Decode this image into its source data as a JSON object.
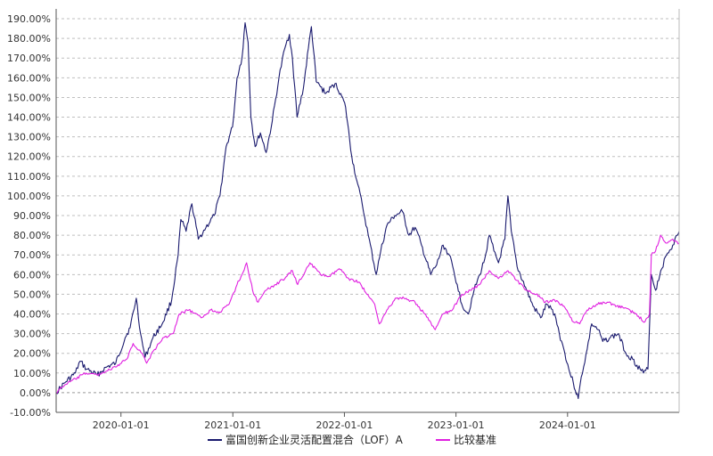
{
  "chart_data": {
    "type": "line",
    "title": "",
    "xlabel": "",
    "ylabel": "",
    "x_range": [
      "2019-06-03",
      "2024-12-31"
    ],
    "ylim": [
      -10,
      195
    ],
    "y_ticks": [
      -10,
      0,
      10,
      20,
      30,
      40,
      50,
      60,
      70,
      80,
      90,
      100,
      110,
      120,
      130,
      140,
      150,
      160,
      170,
      180,
      190
    ],
    "y_tick_labels": [
      "-10.00%",
      "0.00%",
      "10.00%",
      "20.00%",
      "30.00%",
      "40.00%",
      "50.00%",
      "60.00%",
      "70.00%",
      "80.00%",
      "90.00%",
      "100.00%",
      "110.00%",
      "120.00%",
      "130.00%",
      "140.00%",
      "150.00%",
      "160.00%",
      "170.00%",
      "180.00%",
      "190.00%"
    ],
    "x_ticks": [
      "2020-01-01",
      "2021-01-01",
      "2022-01-01",
      "2023-01-01",
      "2024-01-01"
    ],
    "y_unit": "%",
    "grid": "horizontal-dashed",
    "legend_position": "bottom-center",
    "series": [
      {
        "name": "富国创新企业灵活配置混合（LOF）A",
        "color": "#1a1a6e",
        "points": [
          [
            "2019-06-03",
            0
          ],
          [
            "2019-07-01",
            5
          ],
          [
            "2019-08-05",
            10
          ],
          [
            "2019-08-20",
            16
          ],
          [
            "2019-09-10",
            12
          ],
          [
            "2019-10-15",
            9
          ],
          [
            "2019-11-15",
            13
          ],
          [
            "2019-12-15",
            15
          ],
          [
            "2020-01-15",
            28
          ],
          [
            "2020-01-31",
            33
          ],
          [
            "2020-02-20",
            48
          ],
          [
            "2020-03-05",
            30
          ],
          [
            "2020-03-20",
            18
          ],
          [
            "2020-04-15",
            28
          ],
          [
            "2020-05-15",
            35
          ],
          [
            "2020-06-15",
            47
          ],
          [
            "2020-07-06",
            70
          ],
          [
            "2020-07-15",
            88
          ],
          [
            "2020-08-01",
            82
          ],
          [
            "2020-08-20",
            96
          ],
          [
            "2020-09-10",
            78
          ],
          [
            "2020-10-05",
            84
          ],
          [
            "2020-11-01",
            90
          ],
          [
            "2020-11-20",
            100
          ],
          [
            "2020-12-10",
            125
          ],
          [
            "2020-12-31",
            135
          ],
          [
            "2021-01-15",
            160
          ],
          [
            "2021-01-31",
            170
          ],
          [
            "2021-02-10",
            188
          ],
          [
            "2021-02-20",
            178
          ],
          [
            "2021-03-01",
            140
          ],
          [
            "2021-03-15",
            125
          ],
          [
            "2021-04-01",
            132
          ],
          [
            "2021-04-20",
            122
          ],
          [
            "2021-05-10",
            138
          ],
          [
            "2021-06-01",
            160
          ],
          [
            "2021-06-20",
            175
          ],
          [
            "2021-07-05",
            182
          ],
          [
            "2021-07-15",
            170
          ],
          [
            "2021-07-30",
            140
          ],
          [
            "2021-08-20",
            155
          ],
          [
            "2021-09-05",
            175
          ],
          [
            "2021-09-15",
            186
          ],
          [
            "2021-10-01",
            158
          ],
          [
            "2021-11-01",
            152
          ],
          [
            "2021-12-01",
            157
          ],
          [
            "2021-12-20",
            152
          ],
          [
            "2022-01-05",
            145
          ],
          [
            "2022-01-25",
            120
          ],
          [
            "2022-02-10",
            108
          ],
          [
            "2022-03-01",
            95
          ],
          [
            "2022-03-20",
            80
          ],
          [
            "2022-04-15",
            60
          ],
          [
            "2022-04-30",
            72
          ],
          [
            "2022-05-20",
            85
          ],
          [
            "2022-06-15",
            90
          ],
          [
            "2022-07-10",
            92
          ],
          [
            "2022-07-31",
            80
          ],
          [
            "2022-08-20",
            84
          ],
          [
            "2022-09-10",
            75
          ],
          [
            "2022-10-10",
            60
          ],
          [
            "2022-10-30",
            65
          ],
          [
            "2022-11-20",
            75
          ],
          [
            "2022-12-10",
            70
          ],
          [
            "2023-01-05",
            55
          ],
          [
            "2023-01-20",
            45
          ],
          [
            "2023-02-10",
            40
          ],
          [
            "2023-03-01",
            52
          ],
          [
            "2023-03-20",
            60
          ],
          [
            "2023-04-05",
            68
          ],
          [
            "2023-04-20",
            80
          ],
          [
            "2023-05-05",
            72
          ],
          [
            "2023-05-20",
            66
          ],
          [
            "2023-06-10",
            78
          ],
          [
            "2023-06-20",
            100
          ],
          [
            "2023-07-01",
            82
          ],
          [
            "2023-07-20",
            64
          ],
          [
            "2023-08-20",
            52
          ],
          [
            "2023-09-10",
            44
          ],
          [
            "2023-10-05",
            38
          ],
          [
            "2023-10-25",
            45
          ],
          [
            "2023-11-20",
            40
          ],
          [
            "2023-12-05",
            30
          ],
          [
            "2023-12-20",
            22
          ],
          [
            "2024-01-05",
            12
          ],
          [
            "2024-01-20",
            5
          ],
          [
            "2024-02-05",
            -3
          ],
          [
            "2024-02-15",
            8
          ],
          [
            "2024-03-05",
            22
          ],
          [
            "2024-03-20",
            35
          ],
          [
            "2024-04-10",
            32
          ],
          [
            "2024-04-25",
            26
          ],
          [
            "2024-05-20",
            28
          ],
          [
            "2024-06-15",
            30
          ],
          [
            "2024-07-10",
            20
          ],
          [
            "2024-08-01",
            17
          ],
          [
            "2024-08-15",
            14
          ],
          [
            "2024-09-05",
            10
          ],
          [
            "2024-09-20",
            12
          ],
          [
            "2024-10-01",
            60
          ],
          [
            "2024-10-15",
            52
          ],
          [
            "2024-11-01",
            62
          ],
          [
            "2024-11-20",
            70
          ],
          [
            "2024-12-10",
            75
          ],
          [
            "2024-12-25",
            80
          ],
          [
            "2024-12-31",
            82
          ]
        ]
      },
      {
        "name": "比较基准",
        "color": "#e020e0",
        "points": [
          [
            "2019-06-03",
            0
          ],
          [
            "2019-07-01",
            4
          ],
          [
            "2019-08-05",
            7
          ],
          [
            "2019-09-10",
            10
          ],
          [
            "2019-10-15",
            9
          ],
          [
            "2019-11-15",
            11
          ],
          [
            "2019-12-15",
            13
          ],
          [
            "2020-01-20",
            17
          ],
          [
            "2020-02-10",
            25
          ],
          [
            "2020-03-10",
            20
          ],
          [
            "2020-03-25",
            15
          ],
          [
            "2020-04-20",
            22
          ],
          [
            "2020-05-20",
            28
          ],
          [
            "2020-06-20",
            30
          ],
          [
            "2020-07-10",
            40
          ],
          [
            "2020-08-10",
            42
          ],
          [
            "2020-09-20",
            38
          ],
          [
            "2020-10-20",
            42
          ],
          [
            "2020-11-20",
            41
          ],
          [
            "2020-12-20",
            45
          ],
          [
            "2021-01-15",
            55
          ],
          [
            "2021-01-31",
            60
          ],
          [
            "2021-02-15",
            66
          ],
          [
            "2021-03-10",
            50
          ],
          [
            "2021-03-25",
            46
          ],
          [
            "2021-04-20",
            52
          ],
          [
            "2021-05-20",
            55
          ],
          [
            "2021-06-20",
            58
          ],
          [
            "2021-07-15",
            62
          ],
          [
            "2021-08-01",
            55
          ],
          [
            "2021-09-10",
            66
          ],
          [
            "2021-10-15",
            60
          ],
          [
            "2021-11-15",
            59
          ],
          [
            "2021-12-15",
            63
          ],
          [
            "2022-01-15",
            58
          ],
          [
            "2022-02-20",
            56
          ],
          [
            "2022-03-15",
            50
          ],
          [
            "2022-04-10",
            45
          ],
          [
            "2022-04-25",
            35
          ],
          [
            "2022-05-20",
            42
          ],
          [
            "2022-06-20",
            48
          ],
          [
            "2022-07-15",
            48
          ],
          [
            "2022-08-20",
            46
          ],
          [
            "2022-09-20",
            40
          ],
          [
            "2022-10-25",
            32
          ],
          [
            "2022-11-20",
            40
          ],
          [
            "2022-12-20",
            42
          ],
          [
            "2023-01-20",
            50
          ],
          [
            "2023-02-20",
            52
          ],
          [
            "2023-03-20",
            55
          ],
          [
            "2023-04-20",
            62
          ],
          [
            "2023-05-20",
            58
          ],
          [
            "2023-06-20",
            62
          ],
          [
            "2023-07-20",
            57
          ],
          [
            "2023-08-20",
            52
          ],
          [
            "2023-09-20",
            50
          ],
          [
            "2023-10-20",
            46
          ],
          [
            "2023-11-20",
            47
          ],
          [
            "2023-12-20",
            44
          ],
          [
            "2024-01-20",
            36
          ],
          [
            "2024-02-10",
            35
          ],
          [
            "2024-03-05",
            42
          ],
          [
            "2024-04-05",
            45
          ],
          [
            "2024-05-10",
            46
          ],
          [
            "2024-06-10",
            44
          ],
          [
            "2024-07-10",
            43
          ],
          [
            "2024-08-10",
            40
          ],
          [
            "2024-09-10",
            36
          ],
          [
            "2024-09-25",
            40
          ],
          [
            "2024-10-01",
            70
          ],
          [
            "2024-10-15",
            72
          ],
          [
            "2024-10-31",
            80
          ],
          [
            "2024-11-20",
            76
          ],
          [
            "2024-12-10",
            78
          ],
          [
            "2024-12-31",
            76
          ]
        ]
      }
    ]
  }
}
